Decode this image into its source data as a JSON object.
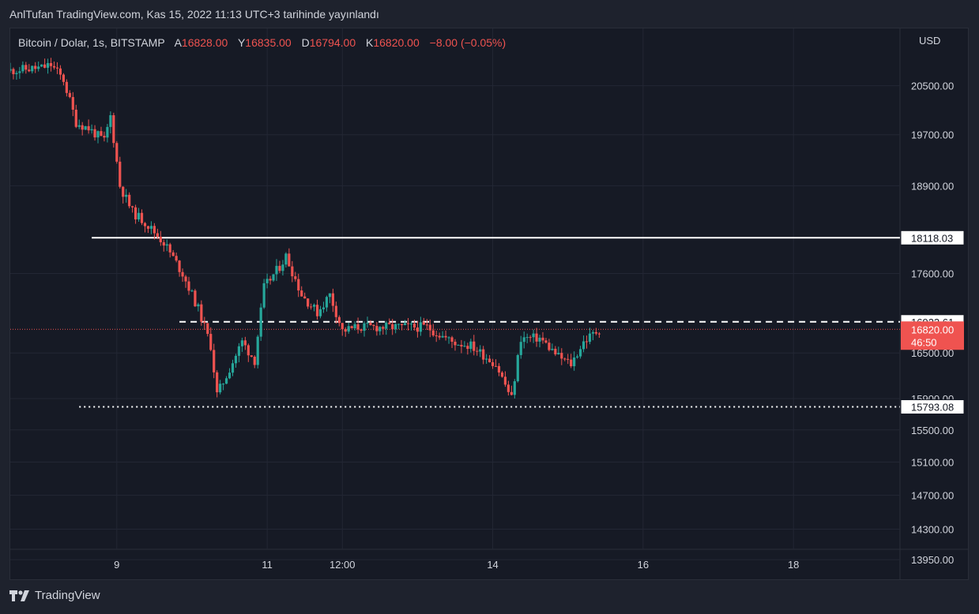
{
  "header": {
    "published": "AnlTufan TradingView.com, Kas 15, 2022 11:13 UTC+3 tarihinde yayınlandı"
  },
  "legend": {
    "symbol": "Bitcoin / Dolar, 1s, BITSTAMP",
    "open_label": "A",
    "open": "16828.00",
    "high_label": "Y",
    "high": "16835.00",
    "low_label": "D",
    "low": "16794.00",
    "close_label": "K",
    "close": "16820.00",
    "change": "−8.00 (−0.05%)"
  },
  "footer": {
    "brand": "TradingView"
  },
  "colors": {
    "up": "#26a69a",
    "down": "#ef5350",
    "background": "#161a25",
    "grid": "#232734",
    "text": "#d1d4dc",
    "hline": "#ffffff"
  },
  "chart_data": {
    "type": "candlestick",
    "currency_label": "USD",
    "y_ticks": [
      20500,
      19700,
      18900,
      17600,
      16500,
      15900,
      15500,
      15100,
      14700,
      14300,
      13950
    ],
    "y_tick_labels": [
      "20500.00",
      "19700.00",
      "18900.00",
      "17600.00",
      "16500.00",
      "15900.00",
      "15500.00",
      "15100.00",
      "14700.00",
      "14300.00",
      "13950.00"
    ],
    "x_ticks": [
      "9",
      "11",
      "12:00",
      "14",
      "16",
      "18"
    ],
    "x_tick_dates": [
      "2022-11-09",
      "2022-11-11",
      "2022-11-12",
      "2022-11-14",
      "2022-11-16",
      "2022-11-18"
    ],
    "x_range": [
      "2022-11-07T14:00",
      "2022-11-19T10:00"
    ],
    "y_log": true,
    "y_range": [
      13800,
      21000
    ],
    "horizontal_lines": [
      {
        "price": 18118.03,
        "label": "18118.03",
        "style": "solid",
        "start": "2022-11-08T16:00"
      },
      {
        "price": 16922.61,
        "label": "16922.61",
        "style": "dashed",
        "start": "2022-11-09T20:00"
      },
      {
        "price": 15793.08,
        "label": "15793.08",
        "style": "dotted",
        "start": "2022-11-08T12:00"
      }
    ],
    "last_price": {
      "price": 16820.0,
      "label": "16820.00",
      "countdown": "46:50"
    },
    "anchors": [
      {
        "t": "2022-11-07T14:00",
        "p": 20750
      },
      {
        "t": "2022-11-08T01:00",
        "p": 20800
      },
      {
        "t": "2022-11-08T04:00",
        "p": 20850
      },
      {
        "t": "2022-11-08T08:00",
        "p": 20600
      },
      {
        "t": "2022-11-08T12:00",
        "p": 19900
      },
      {
        "t": "2022-11-08T16:00",
        "p": 19800
      },
      {
        "t": "2022-11-08T21:00",
        "p": 19600
      },
      {
        "t": "2022-11-08T23:00",
        "p": 20000
      },
      {
        "t": "2022-11-09T02:00",
        "p": 18900
      },
      {
        "t": "2022-11-09T06:00",
        "p": 18500
      },
      {
        "t": "2022-11-09T10:00",
        "p": 18350
      },
      {
        "t": "2022-11-09T16:00",
        "p": 18050
      },
      {
        "t": "2022-11-09T22:00",
        "p": 17600
      },
      {
        "t": "2022-11-10T03:00",
        "p": 17100
      },
      {
        "t": "2022-11-10T07:00",
        "p": 16600
      },
      {
        "t": "2022-11-10T09:00",
        "p": 15950
      },
      {
        "t": "2022-11-10T12:00",
        "p": 16200
      },
      {
        "t": "2022-11-10T17:00",
        "p": 16650
      },
      {
        "t": "2022-11-10T21:00",
        "p": 16400
      },
      {
        "t": "2022-11-11T00:00",
        "p": 17400
      },
      {
        "t": "2022-11-11T05:00",
        "p": 17700
      },
      {
        "t": "2022-11-11T07:00",
        "p": 17850
      },
      {
        "t": "2022-11-11T12:00",
        "p": 17300
      },
      {
        "t": "2022-11-11T17:00",
        "p": 17050
      },
      {
        "t": "2022-11-11T21:00",
        "p": 17300
      },
      {
        "t": "2022-11-12T01:00",
        "p": 16800
      },
      {
        "t": "2022-11-12T06:00",
        "p": 16850
      },
      {
        "t": "2022-11-12T12:00",
        "p": 16850
      },
      {
        "t": "2022-11-12T20:00",
        "p": 16850
      },
      {
        "t": "2022-11-13T04:00",
        "p": 16850
      },
      {
        "t": "2022-11-13T12:00",
        "p": 16650
      },
      {
        "t": "2022-11-13T18:00",
        "p": 16600
      },
      {
        "t": "2022-11-14T02:00",
        "p": 16350
      },
      {
        "t": "2022-11-14T07:00",
        "p": 15900
      },
      {
        "t": "2022-11-14T10:00",
        "p": 16700
      },
      {
        "t": "2022-11-14T16:00",
        "p": 16700
      },
      {
        "t": "2022-11-14T22:00",
        "p": 16450
      },
      {
        "t": "2022-11-15T02:00",
        "p": 16350
      },
      {
        "t": "2022-11-15T06:00",
        "p": 16650
      },
      {
        "t": "2022-11-15T11:00",
        "p": 16820
      }
    ]
  }
}
